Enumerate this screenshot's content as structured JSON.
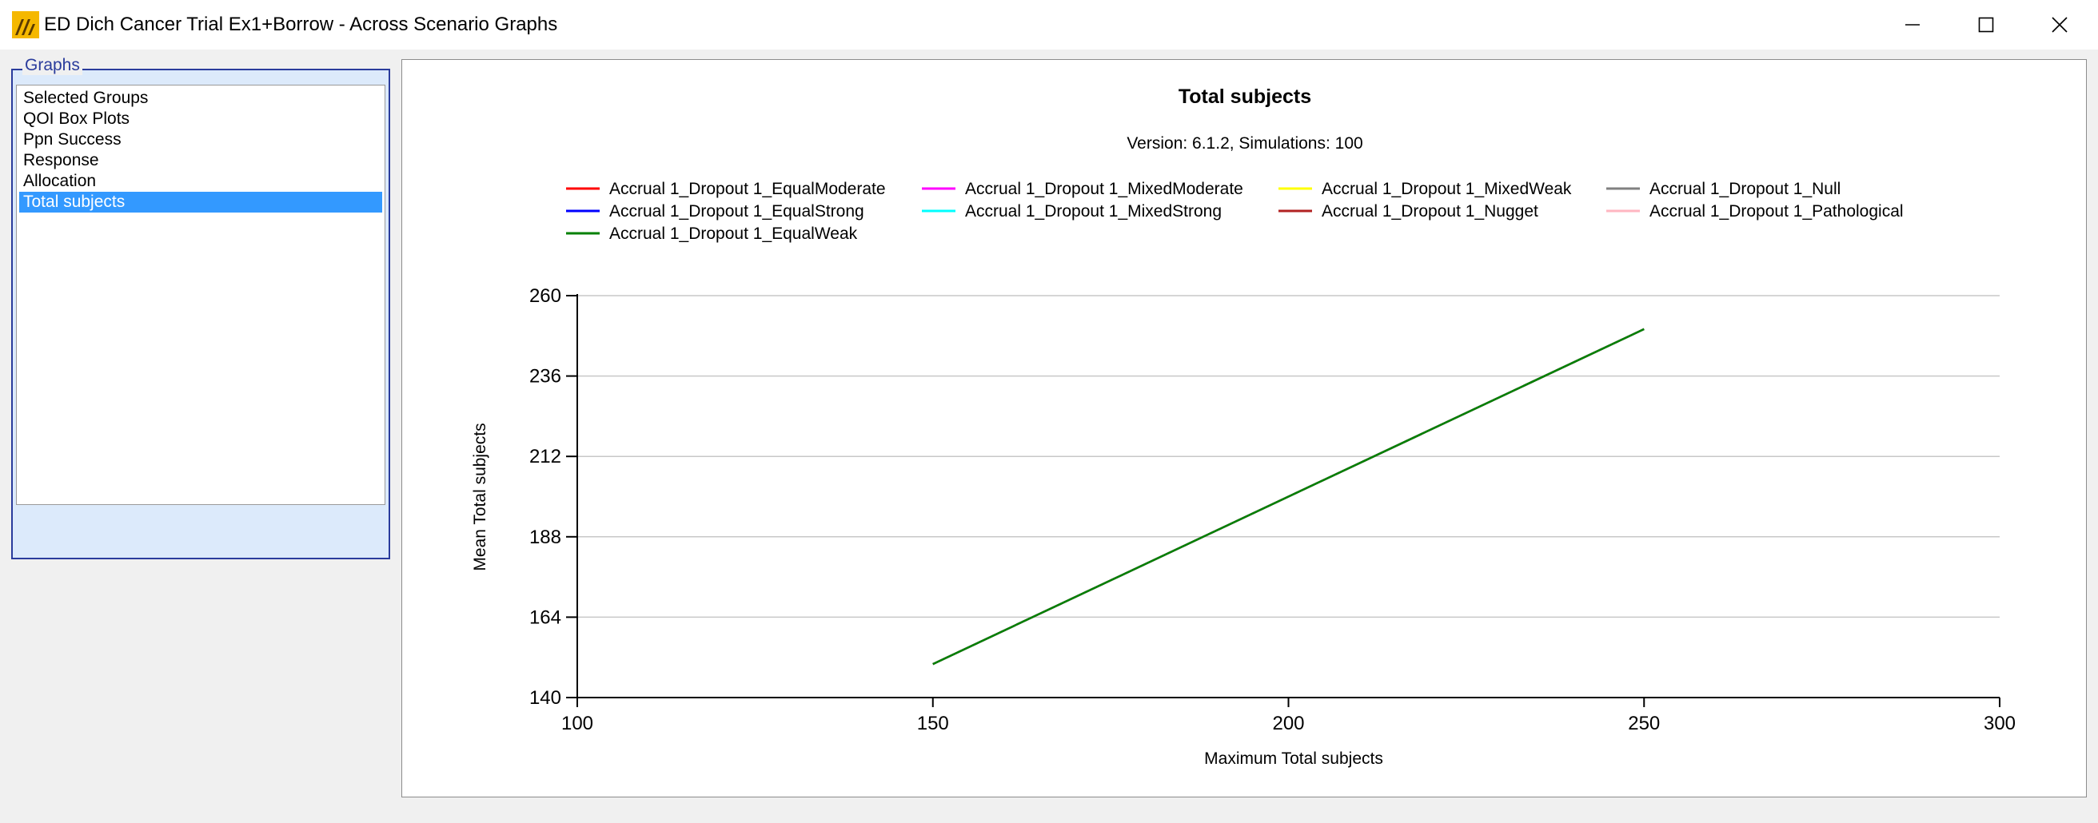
{
  "window": {
    "title": "ED Dich Cancer Trial Ex1+Borrow - Across Scenario Graphs",
    "icon": "app-logo-icon",
    "controls": [
      "minimize-icon",
      "maximize-icon",
      "close-icon"
    ]
  },
  "sidebar": {
    "group_label": "Graphs",
    "items": [
      {
        "label": "Selected Groups",
        "selected": false
      },
      {
        "label": "QOI Box Plots",
        "selected": false
      },
      {
        "label": "Ppn Success",
        "selected": false
      },
      {
        "label": "Response",
        "selected": false
      },
      {
        "label": "Allocation",
        "selected": false
      },
      {
        "label": "Total subjects",
        "selected": true
      }
    ]
  },
  "chart_data": {
    "type": "line",
    "title": "Total subjects",
    "subtitle": "Version: 6.1.2, Simulations: 100",
    "xlabel": "Maximum Total subjects",
    "ylabel": "Mean Total subjects",
    "xlim": [
      100,
      300
    ],
    "ylim": [
      140,
      260
    ],
    "xticks": [
      100,
      150,
      200,
      250,
      300
    ],
    "yticks": [
      140,
      164,
      188,
      212,
      236,
      260
    ],
    "grid": "horizontal",
    "legend_position": "top",
    "x": [
      150,
      250
    ],
    "series": [
      {
        "name": "Accrual 1_Dropout 1_EqualModerate",
        "color": "#ff0000",
        "values": [
          150,
          250
        ]
      },
      {
        "name": "Accrual 1_Dropout 1_MixedModerate",
        "color": "#ff00ff",
        "values": [
          150,
          250
        ]
      },
      {
        "name": "Accrual 1_Dropout 1_MixedWeak",
        "color": "#ffff00",
        "values": [
          150,
          250
        ]
      },
      {
        "name": "Accrual 1_Dropout 1_Null",
        "color": "#808080",
        "values": [
          150,
          250
        ]
      },
      {
        "name": "Accrual 1_Dropout 1_EqualStrong",
        "color": "#0000ff",
        "values": [
          150,
          250
        ]
      },
      {
        "name": "Accrual 1_Dropout 1_MixedStrong",
        "color": "#00ffff",
        "values": [
          150,
          250
        ]
      },
      {
        "name": "Accrual 1_Dropout 1_Nugget",
        "color": "#b22222",
        "values": [
          150,
          250
        ]
      },
      {
        "name": "Accrual 1_Dropout 1_Pathological",
        "color": "#ffb6c1",
        "values": [
          150,
          250
        ]
      },
      {
        "name": "Accrual 1_Dropout 1_EqualWeak",
        "color": "#008000",
        "values": [
          150,
          250
        ]
      }
    ]
  }
}
